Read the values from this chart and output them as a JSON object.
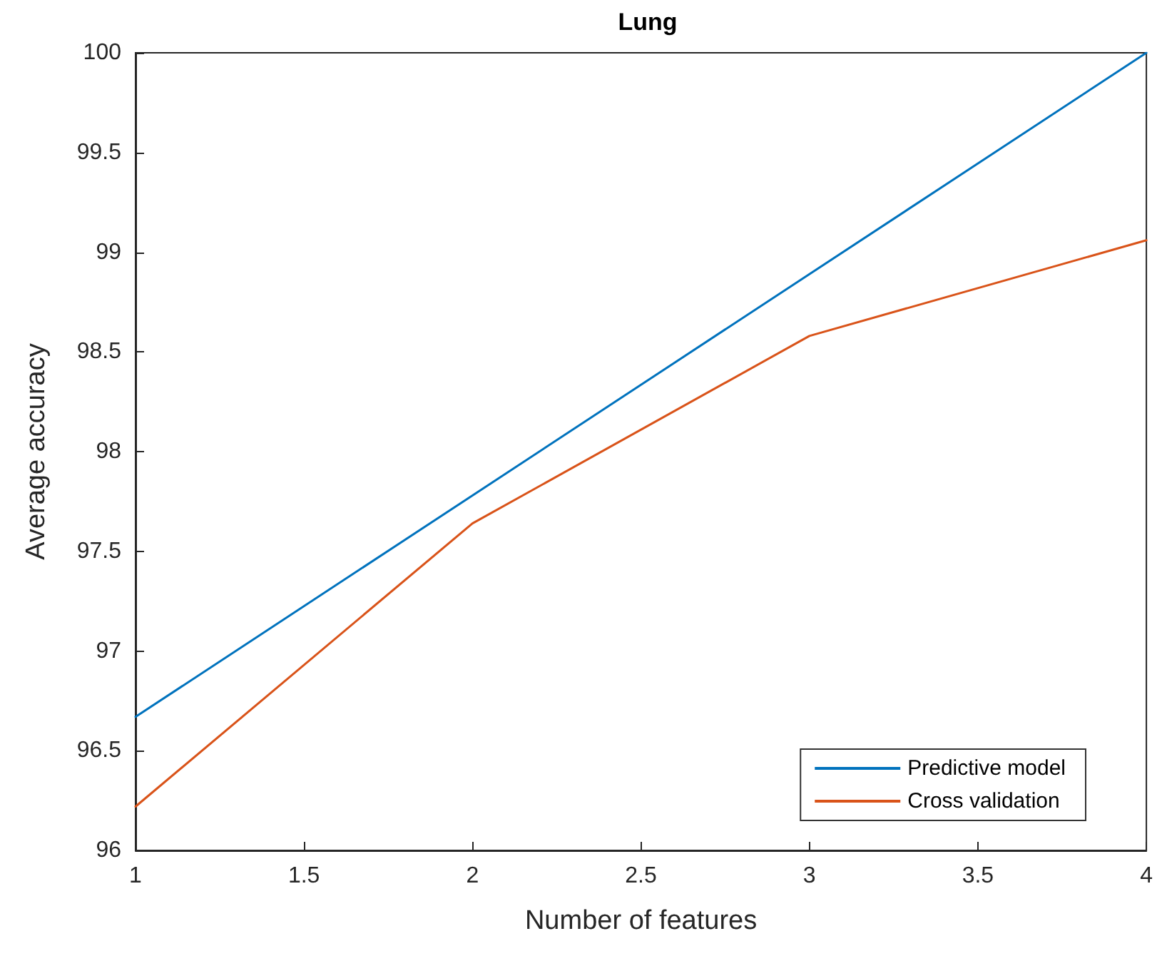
{
  "chart_data": {
    "type": "line",
    "title": "Lung",
    "xlabel": "Number of features",
    "ylabel": "Average accuracy",
    "x": [
      1,
      2,
      3,
      4
    ],
    "series": [
      {
        "name": "Predictive model",
        "color": "#0072bd",
        "values": [
          96.67,
          97.78,
          98.89,
          100
        ]
      },
      {
        "name": "Cross validation",
        "color": "#d95319",
        "values": [
          96.22,
          97.64,
          98.58,
          99.06
        ]
      }
    ],
    "xlim": [
      1,
      4
    ],
    "xticks": [
      1,
      1.5,
      2,
      2.5,
      3,
      3.5,
      4
    ],
    "ylim": [
      96,
      100
    ],
    "yticks": [
      96,
      96.5,
      97,
      97.5,
      98,
      98.5,
      99,
      99.5,
      100
    ],
    "grid": false,
    "legend": "bottom right",
    "marker": "none",
    "line_style": "solid"
  }
}
